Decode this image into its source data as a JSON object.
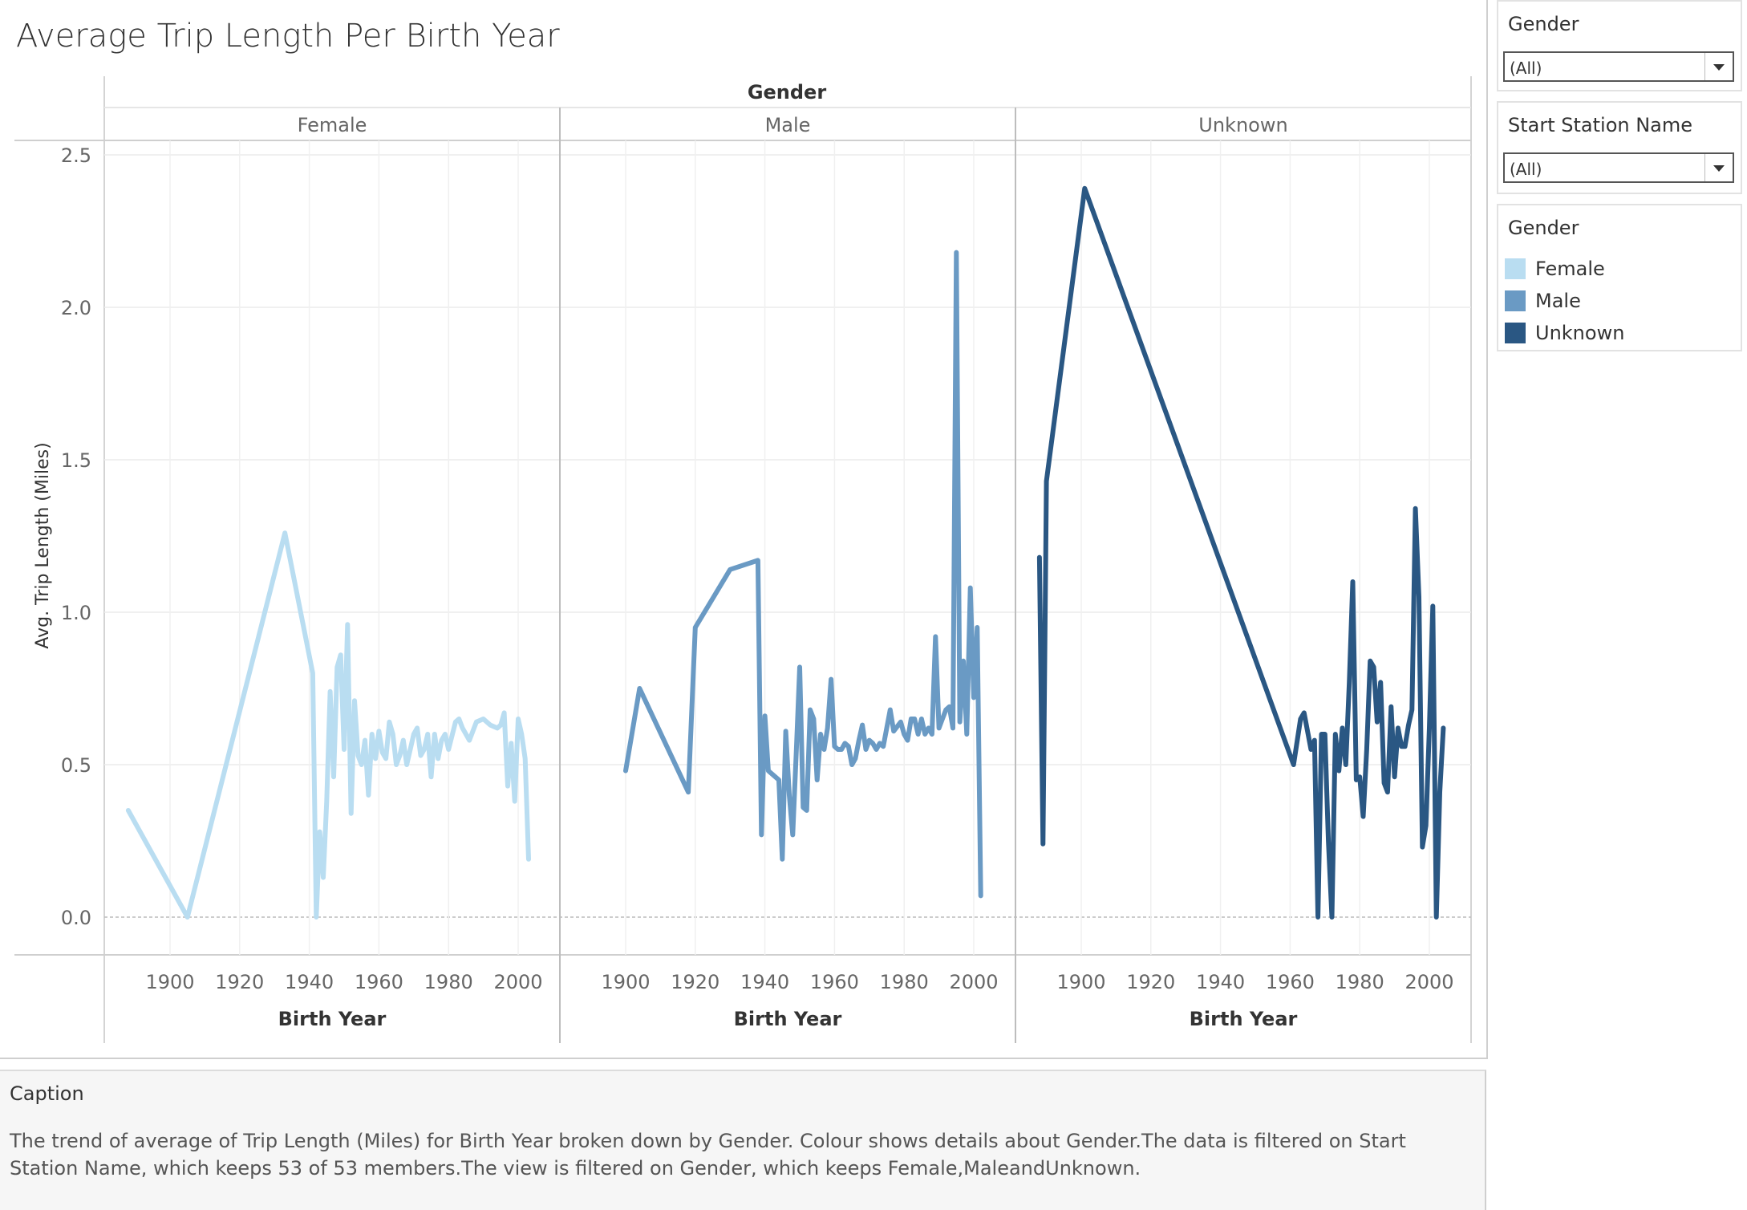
{
  "title": "Average Trip Length Per Birth Year",
  "filters": {
    "gender": {
      "title": "Gender",
      "value": "(All)"
    },
    "station": {
      "title": "Start Station Name",
      "value": "(All)"
    }
  },
  "legend": {
    "title": "Gender",
    "items": [
      {
        "label": "Female",
        "color": "#b9ddf1"
      },
      {
        "label": "Male",
        "color": "#6a9ac4"
      },
      {
        "label": "Unknown",
        "color": "#2a5783"
      }
    ]
  },
  "caption": {
    "title": "Caption",
    "text": "The trend of average of Trip Length (Miles) for Birth Year broken down by Gender. Colour shows details about Gender.The data is filtered on Start Station Name, which keeps 53 of 53 members.The view is filtered on Gender, which keeps Female,MaleandUnknown."
  },
  "chart_data": {
    "type": "line",
    "column_header": "Gender",
    "ylabel": "Avg. Trip Length (Miles)",
    "xlabel": "Birth Year",
    "ylim": [
      0,
      2.5
    ],
    "y_ticks": [
      0.0,
      0.5,
      1.0,
      1.5,
      2.0,
      2.5
    ],
    "y_tick_labels": [
      "0.0",
      "0.5",
      "1.0",
      "1.5",
      "2.0",
      "2.5"
    ],
    "x_ticks": [
      1900,
      1920,
      1940,
      1960,
      1980,
      2000
    ],
    "x_tick_labels": [
      "1900",
      "1920",
      "1940",
      "1960",
      "1980",
      "2000"
    ],
    "grid": true,
    "panels": [
      {
        "name": "Female",
        "color": "#b9ddf1",
        "xlim": [
          1881,
          2010
        ],
        "points": [
          [
            1888,
            0.35
          ],
          [
            1905,
            0.0
          ],
          [
            1933,
            1.26
          ],
          [
            1941,
            0.8
          ],
          [
            1942,
            0.0
          ],
          [
            1943,
            0.28
          ],
          [
            1944,
            0.13
          ],
          [
            1945,
            0.38
          ],
          [
            1946,
            0.74
          ],
          [
            1947,
            0.46
          ],
          [
            1948,
            0.82
          ],
          [
            1949,
            0.86
          ],
          [
            1950,
            0.55
          ],
          [
            1951,
            0.96
          ],
          [
            1952,
            0.34
          ],
          [
            1953,
            0.71
          ],
          [
            1954,
            0.53
          ],
          [
            1955,
            0.5
          ],
          [
            1956,
            0.58
          ],
          [
            1957,
            0.4
          ],
          [
            1958,
            0.6
          ],
          [
            1959,
            0.52
          ],
          [
            1960,
            0.61
          ],
          [
            1961,
            0.54
          ],
          [
            1962,
            0.52
          ],
          [
            1963,
            0.64
          ],
          [
            1964,
            0.6
          ],
          [
            1965,
            0.5
          ],
          [
            1966,
            0.53
          ],
          [
            1967,
            0.58
          ],
          [
            1968,
            0.5
          ],
          [
            1969,
            0.55
          ],
          [
            1970,
            0.6
          ],
          [
            1971,
            0.62
          ],
          [
            1972,
            0.53
          ],
          [
            1973,
            0.55
          ],
          [
            1974,
            0.6
          ],
          [
            1975,
            0.46
          ],
          [
            1976,
            0.6
          ],
          [
            1977,
            0.52
          ],
          [
            1978,
            0.58
          ],
          [
            1979,
            0.6
          ],
          [
            1980,
            0.55
          ],
          [
            1982,
            0.64
          ],
          [
            1983,
            0.65
          ],
          [
            1984,
            0.62
          ],
          [
            1986,
            0.58
          ],
          [
            1988,
            0.64
          ],
          [
            1990,
            0.65
          ],
          [
            1992,
            0.63
          ],
          [
            1994,
            0.62
          ],
          [
            1995,
            0.63
          ],
          [
            1996,
            0.67
          ],
          [
            1997,
            0.43
          ],
          [
            1998,
            0.57
          ],
          [
            1999,
            0.38
          ],
          [
            2000,
            0.65
          ],
          [
            2001,
            0.6
          ],
          [
            2002,
            0.52
          ],
          [
            2003,
            0.19
          ]
        ]
      },
      {
        "name": "Male",
        "color": "#6a9ac4",
        "xlim": [
          1881,
          2010
        ],
        "points": [
          [
            1900,
            0.48
          ],
          [
            1904,
            0.75
          ],
          [
            1918,
            0.41
          ],
          [
            1920,
            0.95
          ],
          [
            1930,
            1.14
          ],
          [
            1938,
            1.17
          ],
          [
            1939,
            0.27
          ],
          [
            1940,
            0.66
          ],
          [
            1941,
            0.48
          ],
          [
            1944,
            0.45
          ],
          [
            1945,
            0.19
          ],
          [
            1946,
            0.61
          ],
          [
            1947,
            0.4
          ],
          [
            1948,
            0.27
          ],
          [
            1949,
            0.54
          ],
          [
            1950,
            0.82
          ],
          [
            1951,
            0.36
          ],
          [
            1952,
            0.35
          ],
          [
            1953,
            0.68
          ],
          [
            1954,
            0.65
          ],
          [
            1955,
            0.45
          ],
          [
            1956,
            0.6
          ],
          [
            1957,
            0.55
          ],
          [
            1958,
            0.62
          ],
          [
            1959,
            0.78
          ],
          [
            1960,
            0.56
          ],
          [
            1961,
            0.55
          ],
          [
            1962,
            0.55
          ],
          [
            1963,
            0.57
          ],
          [
            1964,
            0.56
          ],
          [
            1965,
            0.5
          ],
          [
            1966,
            0.52
          ],
          [
            1967,
            0.58
          ],
          [
            1968,
            0.63
          ],
          [
            1969,
            0.55
          ],
          [
            1970,
            0.58
          ],
          [
            1971,
            0.57
          ],
          [
            1972,
            0.55
          ],
          [
            1973,
            0.57
          ],
          [
            1974,
            0.56
          ],
          [
            1976,
            0.68
          ],
          [
            1977,
            0.61
          ],
          [
            1979,
            0.64
          ],
          [
            1980,
            0.6
          ],
          [
            1981,
            0.58
          ],
          [
            1982,
            0.65
          ],
          [
            1983,
            0.65
          ],
          [
            1984,
            0.6
          ],
          [
            1985,
            0.65
          ],
          [
            1986,
            0.6
          ],
          [
            1987,
            0.62
          ],
          [
            1988,
            0.6
          ],
          [
            1989,
            0.92
          ],
          [
            1990,
            0.62
          ],
          [
            1991,
            0.65
          ],
          [
            1992,
            0.68
          ],
          [
            1993,
            0.69
          ],
          [
            1994,
            0.62
          ],
          [
            1995,
            2.18
          ],
          [
            1996,
            0.64
          ],
          [
            1997,
            0.84
          ],
          [
            1998,
            0.6
          ],
          [
            1999,
            1.08
          ],
          [
            2000,
            0.72
          ],
          [
            2001,
            0.95
          ],
          [
            2002,
            0.07
          ]
        ]
      },
      {
        "name": "Unknown",
        "color": "#2a5783",
        "xlim": [
          1881,
          2010
        ],
        "points": [
          [
            1888,
            1.18
          ],
          [
            1889,
            0.24
          ],
          [
            1890,
            1.43
          ],
          [
            1901,
            2.39
          ],
          [
            1961,
            0.5
          ],
          [
            1963,
            0.65
          ],
          [
            1964,
            0.67
          ],
          [
            1966,
            0.55
          ],
          [
            1967,
            0.58
          ],
          [
            1968,
            0.0
          ],
          [
            1969,
            0.6
          ],
          [
            1970,
            0.6
          ],
          [
            1971,
            0.25
          ],
          [
            1972,
            0.0
          ],
          [
            1973,
            0.6
          ],
          [
            1974,
            0.48
          ],
          [
            1975,
            0.62
          ],
          [
            1976,
            0.5
          ],
          [
            1977,
            0.77
          ],
          [
            1978,
            1.1
          ],
          [
            1979,
            0.45
          ],
          [
            1980,
            0.46
          ],
          [
            1981,
            0.33
          ],
          [
            1982,
            0.55
          ],
          [
            1983,
            0.84
          ],
          [
            1984,
            0.82
          ],
          [
            1985,
            0.64
          ],
          [
            1986,
            0.77
          ],
          [
            1987,
            0.44
          ],
          [
            1988,
            0.41
          ],
          [
            1989,
            0.69
          ],
          [
            1990,
            0.46
          ],
          [
            1991,
            0.62
          ],
          [
            1992,
            0.56
          ],
          [
            1993,
            0.56
          ],
          [
            1994,
            0.63
          ],
          [
            1995,
            0.68
          ],
          [
            1996,
            1.34
          ],
          [
            1997,
            1.05
          ],
          [
            1998,
            0.23
          ],
          [
            1999,
            0.3
          ],
          [
            2000,
            0.62
          ],
          [
            2001,
            1.02
          ],
          [
            2002,
            0.0
          ],
          [
            2003,
            0.41
          ],
          [
            2004,
            0.62
          ]
        ]
      }
    ]
  }
}
